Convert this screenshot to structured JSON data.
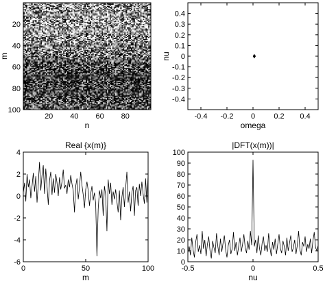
{
  "chart_data": [
    {
      "type": "heatmap",
      "title": "",
      "xlabel": "n",
      "ylabel": "m",
      "xlim": [
        0,
        100
      ],
      "ylim": [
        100,
        0
      ],
      "xticks": [
        20,
        40,
        60,
        80
      ],
      "yticks": [
        20,
        40,
        60,
        80,
        100
      ],
      "rows": 100,
      "cols": 96,
      "colormap": "gray",
      "brightness_by_m": [
        {
          "m": 0,
          "level": 0.55
        },
        {
          "m": 20,
          "level": 0.62
        },
        {
          "m": 45,
          "level": 0.48
        },
        {
          "m": 60,
          "level": 0.22
        },
        {
          "m": 80,
          "level": 0.16
        },
        {
          "m": 100,
          "level": 0.3
        }
      ]
    },
    {
      "type": "scatter",
      "title": "",
      "xlabel": "omega",
      "ylabel": "nu",
      "xlim": [
        -0.5,
        0.5
      ],
      "ylim": [
        -0.5,
        0.5
      ],
      "xticks": [
        -0.4,
        -0.2,
        0,
        0.2,
        0.4
      ],
      "yticks": [
        -0.4,
        -0.3,
        -0.2,
        -0.1,
        0,
        0.1,
        0.2,
        0.3,
        0.4
      ],
      "points": [
        {
          "x": 0.01,
          "y": 0
        }
      ]
    },
    {
      "type": "line",
      "title": "Real {x(m)}",
      "xlabel": "m",
      "ylabel": "",
      "xlim": [
        0,
        100
      ],
      "ylim": [
        -6,
        4
      ],
      "xticks": [
        0,
        50,
        100
      ],
      "yticks": [
        -6,
        -4,
        -2,
        0,
        2,
        4
      ],
      "x_start": 0,
      "x_step": 1,
      "values": [
        0.3,
        1.2,
        -0.5,
        2.0,
        0.8,
        1.5,
        -0.2,
        0.9,
        2.1,
        0.4,
        1.8,
        -0.6,
        1.1,
        3.1,
        0.5,
        1.9,
        2.8,
        0.2,
        2.5,
        0.9,
        -0.8,
        1.4,
        2.2,
        0.1,
        1.6,
        0.3,
        2.0,
        1.2,
        0.0,
        1.7,
        0.6,
        1.3,
        2.4,
        0.7,
        1.0,
        0.2,
        1.5,
        0.8,
        1.9,
        1.1,
        0.5,
        -1.5,
        0.9,
        1.6,
        -0.3,
        0.8,
        2.2,
        1.0,
        0.1,
        -1.1,
        0.6,
        1.3,
        0.5,
        -0.9,
        0.2,
        0.9,
        -0.4,
        0.3,
        -0.7,
        -5.5,
        -1.2,
        0.5,
        -0.2,
        0.6,
        -1.8,
        0.9,
        0.1,
        -3.2,
        1.5,
        0.2,
        1.2,
        -0.8,
        0.4,
        -0.3,
        0.6,
        -0.5,
        -1.5,
        0.5,
        -2.2,
        -0.1,
        0.8,
        -1.0,
        0.7,
        2.2,
        -0.6,
        0.4,
        -1.4,
        0.3,
        0.9,
        -1.8,
        0.5,
        0.8,
        -0.9,
        1.1,
        0.0,
        1.3,
        0.2,
        -0.7,
        1.6,
        -0.6,
        1.9
      ]
    },
    {
      "type": "line",
      "title": "|DFT(x(m))|",
      "xlabel": "nu",
      "ylabel": "",
      "xlim": [
        -0.5,
        0.5
      ],
      "ylim": [
        0,
        100
      ],
      "xticks": [
        -0.5,
        0,
        0.5
      ],
      "yticks": [
        0,
        10,
        20,
        30,
        40,
        50,
        60,
        70,
        80,
        90,
        100
      ],
      "x_start": -0.5,
      "x_step": 0.01,
      "values": [
        8,
        14,
        6,
        22,
        11,
        4,
        18,
        25,
        9,
        15,
        7,
        28,
        12,
        20,
        5,
        16,
        23,
        10,
        3,
        19,
        13,
        8,
        26,
        14,
        6,
        21,
        9,
        17,
        24,
        11,
        4,
        15,
        20,
        7,
        12,
        27,
        10,
        18,
        6,
        14,
        22,
        9,
        16,
        25,
        13,
        8,
        19,
        11,
        28,
        15,
        93,
        14,
        20,
        8,
        24,
        12,
        6,
        17,
        23,
        10,
        15,
        9,
        26,
        13,
        5,
        18,
        11,
        21,
        7,
        16,
        25,
        12,
        8,
        19,
        14,
        6,
        22,
        10,
        17,
        24,
        9,
        13,
        20,
        7,
        15,
        28,
        11,
        6,
        18,
        14,
        23,
        9,
        16,
        12,
        21,
        8,
        19,
        27,
        13,
        10,
        15
      ]
    }
  ]
}
